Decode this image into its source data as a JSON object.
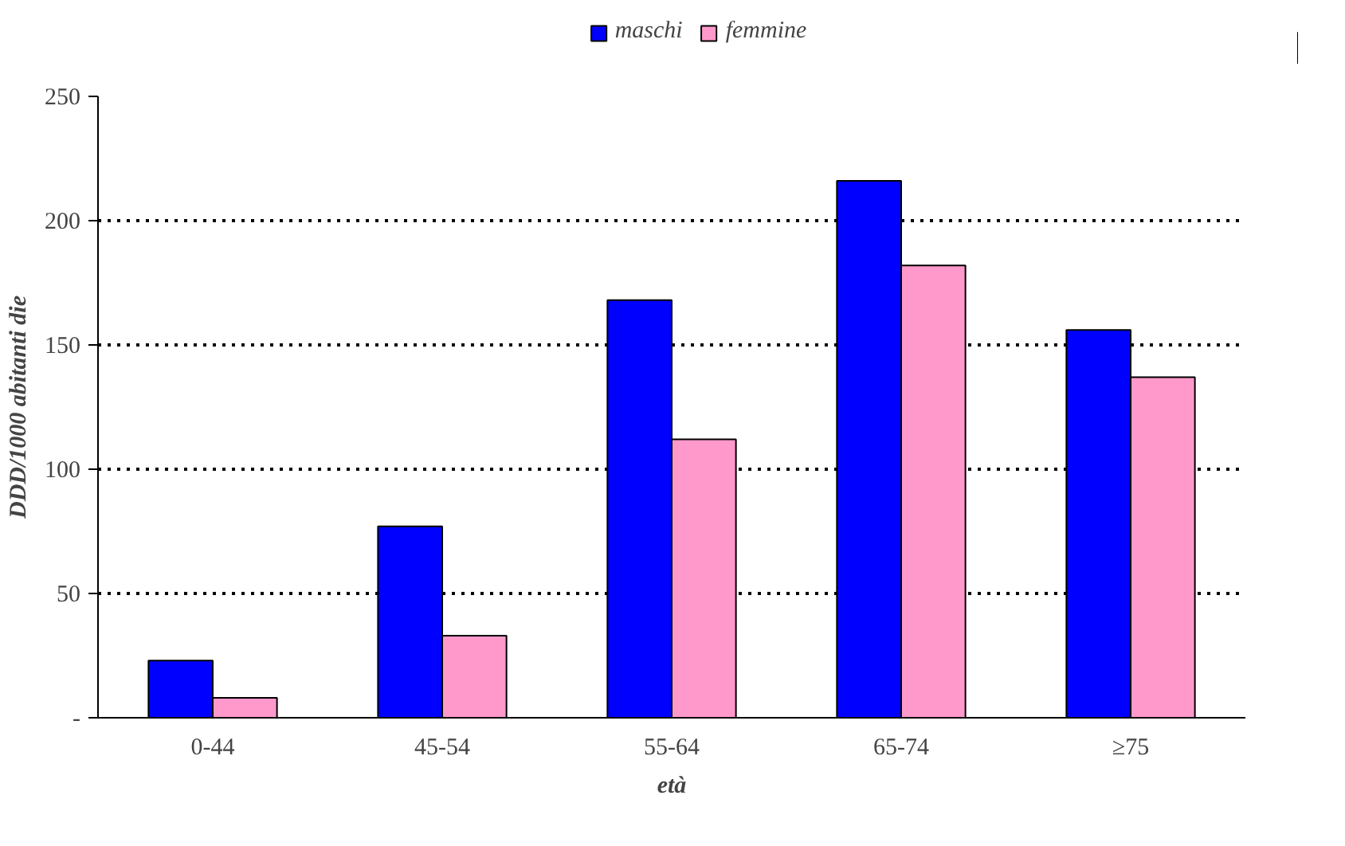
{
  "chart_data": {
    "type": "bar",
    "xlabel": "età",
    "ylabel": "DDD/1000 abitanti die",
    "categories": [
      "0-44",
      "45-54",
      "55-64",
      "65-74",
      "≥75"
    ],
    "series": [
      {
        "name": "maschi",
        "color": "#0000ff",
        "values": [
          23,
          77,
          168,
          216,
          156
        ]
      },
      {
        "name": "femmine",
        "color": "#ff99cc",
        "values": [
          8,
          33,
          112,
          182,
          137
        ]
      }
    ],
    "ylim": [
      0,
      250
    ],
    "yticks": [
      {
        "value": 0,
        "label": "-"
      },
      50,
      100,
      150,
      200,
      250
    ],
    "grid": "y",
    "legend": "top"
  }
}
